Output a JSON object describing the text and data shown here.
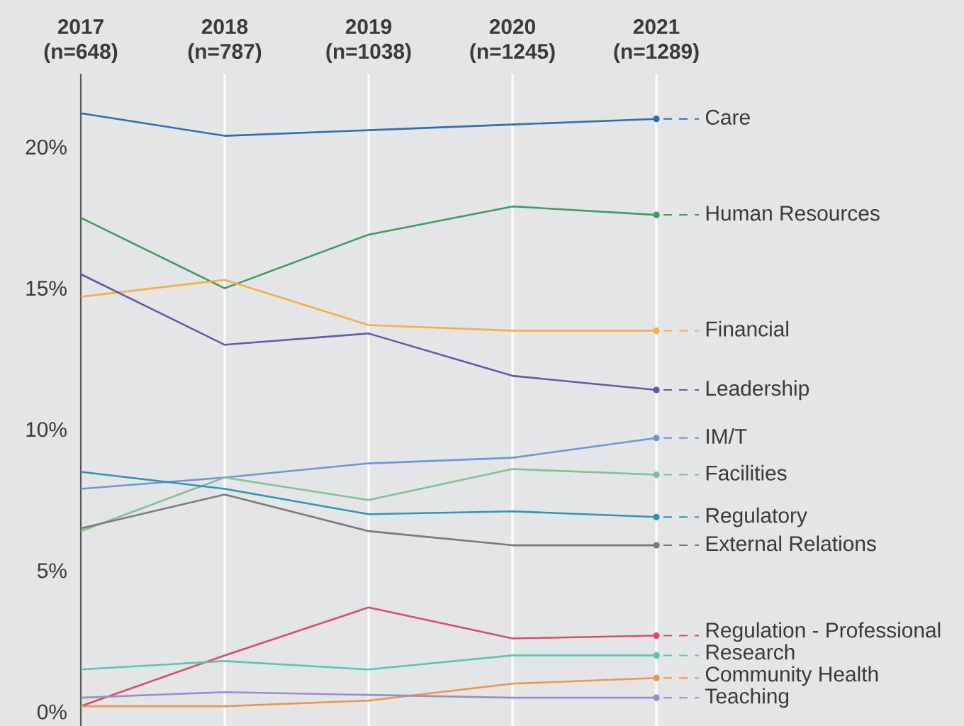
{
  "chart_data": {
    "type": "line",
    "categories": [
      "2017 (n=648)",
      "2018 (n=787)",
      "2019 (n=1038)",
      "2020 (n=1245)",
      "2021 (n=1289)"
    ],
    "series": [
      {
        "name": "Care",
        "color": "#2f6db5",
        "values": [
          21.2,
          20.4,
          20.6,
          20.8,
          21.0
        ]
      },
      {
        "name": "Human Resources",
        "color": "#3f9b64",
        "values": [
          17.5,
          15.0,
          16.9,
          17.9,
          17.6
        ]
      },
      {
        "name": "Financial",
        "color": "#f5b041",
        "values": [
          14.7,
          15.3,
          13.7,
          13.5,
          13.5
        ]
      },
      {
        "name": "Leadership",
        "color": "#6a55a8",
        "values": [
          15.5,
          13.0,
          13.4,
          11.9,
          11.4
        ]
      },
      {
        "name": "IM/T",
        "color": "#6f95d6",
        "values": [
          7.9,
          8.3,
          8.8,
          9.0,
          9.7
        ]
      },
      {
        "name": "Facilities",
        "color": "#82c095",
        "values": [
          6.4,
          8.3,
          7.5,
          8.6,
          8.4
        ]
      },
      {
        "name": "Regulatory",
        "color": "#2e93b5",
        "values": [
          8.5,
          7.9,
          7.0,
          7.1,
          6.9
        ]
      },
      {
        "name": "External Relations",
        "color": "#7a7a7a",
        "values": [
          6.5,
          7.7,
          6.4,
          5.9,
          5.9
        ]
      },
      {
        "name": "Regulation - Professional",
        "color": "#e04a6a",
        "values": [
          0.2,
          2.0,
          3.7,
          2.6,
          2.7
        ]
      },
      {
        "name": "Research",
        "color": "#5cc5b5",
        "values": [
          1.5,
          1.8,
          1.5,
          2.0,
          2.0
        ]
      },
      {
        "name": "Community Health",
        "color": "#f0954a",
        "values": [
          0.2,
          0.2,
          0.4,
          1.0,
          1.2
        ]
      },
      {
        "name": "Teaching",
        "color": "#9590c5",
        "values": [
          0.5,
          0.7,
          0.6,
          0.5,
          0.5
        ]
      }
    ],
    "ylim": [
      -0.5,
      22.6
    ],
    "yticks": [
      {
        "value": 0,
        "label": "0%"
      },
      {
        "value": 5,
        "label": "5%"
      },
      {
        "value": 10,
        "label": "10%"
      },
      {
        "value": 15,
        "label": "15%"
      },
      {
        "value": 20,
        "label": "20%"
      }
    ],
    "grid": "x",
    "legend": "right"
  }
}
